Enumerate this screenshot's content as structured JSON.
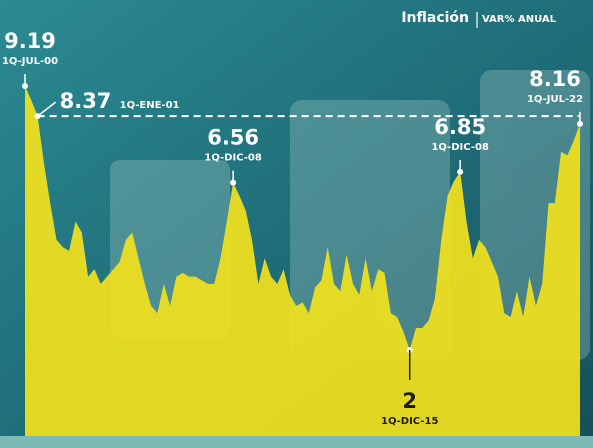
{
  "chart_data": {
    "type": "area",
    "title": "Inflación",
    "subtitle": "VAR% ANUAL",
    "color": "#f2e21c",
    "categories": [
      "1Q-JUL-00",
      null,
      "1Q-ENE-01",
      null,
      null,
      null,
      null,
      null,
      null,
      null,
      null,
      null,
      null,
      null,
      null,
      null,
      null,
      null,
      null,
      null,
      null,
      null,
      null,
      null,
      null,
      null,
      null,
      null,
      null,
      null,
      null,
      null,
      null,
      "1Q-DIC-08",
      null,
      null,
      null,
      null,
      null,
      null,
      null,
      null,
      null,
      null,
      null,
      null,
      null,
      null,
      null,
      null,
      null,
      null,
      null,
      null,
      null,
      null,
      null,
      null,
      null,
      null,
      null,
      "1Q-DIC-15",
      null,
      null,
      null,
      null,
      null,
      null,
      null,
      "1Q-DIC-08",
      null,
      null,
      null,
      null,
      null,
      null,
      null,
      null,
      null,
      null,
      null,
      null,
      null,
      null,
      null,
      null,
      null,
      null,
      "1Q-JUL-22"
    ],
    "values": [
      9.19,
      8.8,
      8.37,
      7.1,
      6.0,
      5.0,
      4.8,
      4.7,
      5.5,
      5.2,
      4.0,
      4.2,
      3.8,
      4.0,
      4.2,
      4.4,
      5.0,
      5.2,
      4.5,
      3.8,
      3.2,
      3.0,
      3.8,
      3.2,
      4.0,
      4.1,
      4.0,
      4.0,
      3.9,
      3.8,
      3.8,
      4.5,
      5.5,
      6.56,
      6.2,
      5.8,
      5.0,
      3.8,
      4.5,
      4.0,
      3.8,
      4.2,
      3.5,
      3.2,
      3.3,
      3.0,
      3.7,
      3.9,
      4.8,
      3.8,
      3.6,
      4.6,
      3.8,
      3.5,
      4.5,
      3.6,
      4.2,
      4.1,
      3.0,
      2.9,
      2.5,
      2.0,
      2.6,
      2.6,
      2.8,
      3.4,
      5.0,
      6.2,
      6.6,
      6.85,
      5.5,
      4.5,
      5.0,
      4.8,
      4.4,
      4.0,
      3.0,
      2.9,
      3.6,
      2.9,
      4.0,
      3.2,
      3.8,
      6.0,
      6.0,
      7.4,
      7.3,
      7.7,
      8.16
    ]
  }
}
